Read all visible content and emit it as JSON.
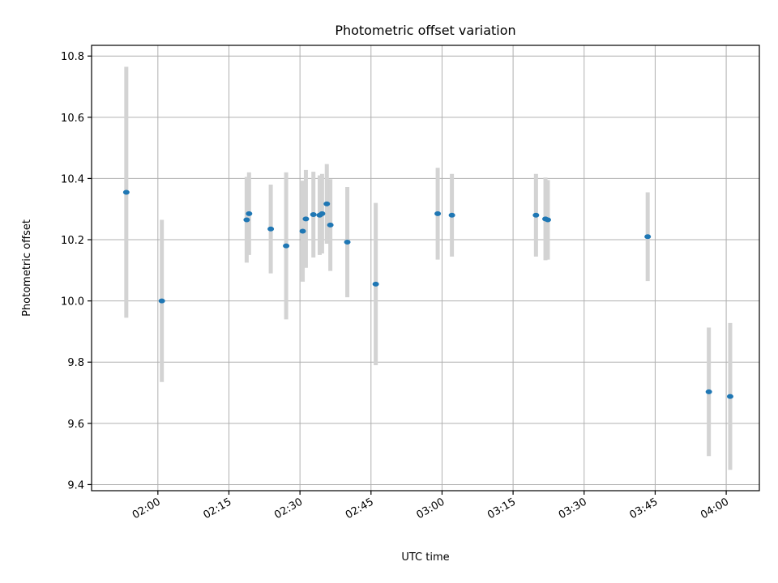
{
  "chart_data": {
    "type": "scatter",
    "title": "Photometric offset variation",
    "xlabel": "UTC time",
    "ylabel": "Photometric offset",
    "xlim": [
      "01:46",
      "04:07"
    ],
    "ylim": [
      9.38,
      10.835
    ],
    "x_ticks": [
      "02:00",
      "02:15",
      "02:30",
      "02:45",
      "03:00",
      "03:15",
      "03:30",
      "03:45",
      "04:00"
    ],
    "y_ticks": [
      9.4,
      9.6,
      9.8,
      10.0,
      10.2,
      10.4,
      10.6,
      10.8
    ],
    "grid": true,
    "marker_color": "#1f77b4",
    "errorbar_color": "#d3d3d3",
    "points": [
      {
        "time": "01:53:20",
        "y": 10.355,
        "err": 0.41
      },
      {
        "time": "02:00:50",
        "y": 10.0,
        "err": 0.265
      },
      {
        "time": "02:18:45",
        "y": 10.265,
        "err": 0.14
      },
      {
        "time": "02:19:15",
        "y": 10.285,
        "err": 0.135
      },
      {
        "time": "02:23:50",
        "y": 10.235,
        "err": 0.145
      },
      {
        "time": "02:27:05",
        "y": 10.18,
        "err": 0.24
      },
      {
        "time": "02:30:35",
        "y": 10.228,
        "err": 0.165
      },
      {
        "time": "02:31:15",
        "y": 10.268,
        "err": 0.16
      },
      {
        "time": "02:32:50",
        "y": 10.282,
        "err": 0.14
      },
      {
        "time": "02:34:10",
        "y": 10.28,
        "err": 0.13
      },
      {
        "time": "02:34:40",
        "y": 10.285,
        "err": 0.13
      },
      {
        "time": "02:35:40",
        "y": 10.317,
        "err": 0.13
      },
      {
        "time": "02:36:25",
        "y": 10.248,
        "err": 0.15
      },
      {
        "time": "02:40:00",
        "y": 10.192,
        "err": 0.18
      },
      {
        "time": "02:46:00",
        "y": 10.055,
        "err": 0.265
      },
      {
        "time": "02:59:05",
        "y": 10.285,
        "err": 0.15
      },
      {
        "time": "03:02:05",
        "y": 10.28,
        "err": 0.135
      },
      {
        "time": "03:19:50",
        "y": 10.28,
        "err": 0.135
      },
      {
        "time": "03:21:50",
        "y": 10.268,
        "err": 0.135
      },
      {
        "time": "03:22:20",
        "y": 10.265,
        "err": 0.13
      },
      {
        "time": "03:43:25",
        "y": 10.21,
        "err": 0.145
      },
      {
        "time": "03:56:20",
        "y": 9.703,
        "err": 0.21
      },
      {
        "time": "04:00:50",
        "y": 9.688,
        "err": 0.24
      }
    ]
  }
}
